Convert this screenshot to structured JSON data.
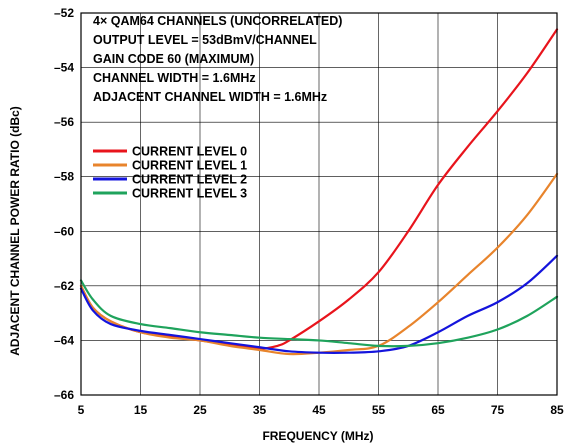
{
  "chart_data": {
    "type": "line",
    "title": "",
    "xlabel": "FREQUENCY (MHz)",
    "ylabel": "ADJACENT CHANNEL POWER RATIO (dBc)",
    "xlim": [
      5,
      85
    ],
    "ylim": [
      -66,
      -52
    ],
    "x_ticks": [
      5,
      15,
      25,
      35,
      45,
      55,
      65,
      75,
      85
    ],
    "x_tick_labels": [
      "5",
      "15",
      "25",
      "35",
      "45",
      "55",
      "65",
      "75",
      "85"
    ],
    "y_ticks": [
      -52,
      -54,
      -56,
      -58,
      -60,
      -62,
      -64,
      -66
    ],
    "y_tick_labels": [
      "–52",
      "–54",
      "–56",
      "–58",
      "–60",
      "–62",
      "–64",
      "–66"
    ],
    "grid": true,
    "legend_position": "upper-left",
    "annotations": [
      "4× QAM64 CHANNELS (UNCORRELATED)",
      "OUTPUT LEVEL = 53dBmV/CHANNEL",
      "GAIN CODE 60 (MAXIMUM)",
      "CHANNEL WIDTH = 1.6MHz",
      "ADJACENT CHANNEL WIDTH = 1.6MHz"
    ],
    "series": [
      {
        "name": "CURRENT LEVEL 0",
        "color": "#e8141c",
        "x": [
          5,
          7,
          10,
          15,
          20,
          25,
          30,
          35,
          38,
          40,
          45,
          50,
          55,
          60,
          65,
          70,
          75,
          80,
          85
        ],
        "y": [
          -62.0,
          -62.8,
          -63.3,
          -63.7,
          -63.85,
          -64.0,
          -64.15,
          -64.3,
          -64.2,
          -64.0,
          -63.3,
          -62.5,
          -61.5,
          -60.0,
          -58.3,
          -56.9,
          -55.6,
          -54.2,
          -52.6
        ]
      },
      {
        "name": "CURRENT LEVEL 1",
        "color": "#e8842c",
        "x": [
          5,
          7,
          10,
          15,
          20,
          25,
          30,
          35,
          40,
          45,
          50,
          55,
          60,
          65,
          70,
          75,
          80,
          85
        ],
        "y": [
          -62.0,
          -62.8,
          -63.3,
          -63.7,
          -63.9,
          -64.0,
          -64.2,
          -64.35,
          -64.5,
          -64.45,
          -64.35,
          -64.2,
          -63.5,
          -62.6,
          -61.6,
          -60.6,
          -59.4,
          -57.9
        ]
      },
      {
        "name": "CURRENT LEVEL 2",
        "color": "#1414dc",
        "x": [
          5,
          7,
          10,
          15,
          20,
          25,
          30,
          35,
          40,
          45,
          50,
          55,
          60,
          65,
          70,
          75,
          80,
          85
        ],
        "y": [
          -62.1,
          -62.9,
          -63.4,
          -63.65,
          -63.8,
          -63.95,
          -64.1,
          -64.25,
          -64.4,
          -64.45,
          -64.45,
          -64.4,
          -64.2,
          -63.7,
          -63.1,
          -62.6,
          -61.9,
          -60.9
        ]
      },
      {
        "name": "CURRENT LEVEL 3",
        "color": "#1fa35c",
        "x": [
          5,
          7,
          10,
          15,
          20,
          25,
          30,
          35,
          40,
          45,
          50,
          55,
          60,
          65,
          70,
          75,
          80,
          85
        ],
        "y": [
          -61.8,
          -62.5,
          -63.1,
          -63.4,
          -63.55,
          -63.7,
          -63.8,
          -63.9,
          -63.95,
          -64.0,
          -64.1,
          -64.2,
          -64.2,
          -64.1,
          -63.9,
          -63.6,
          -63.1,
          -62.4
        ]
      }
    ]
  }
}
